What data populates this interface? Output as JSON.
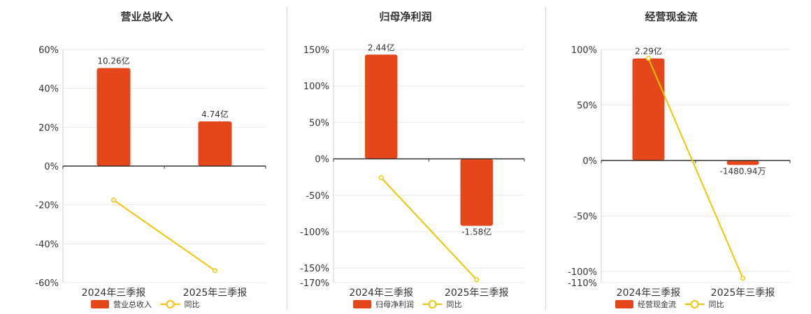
{
  "colors": {
    "bar": "#e5461a",
    "line": "#f5c400",
    "grid": "#e8e8e8",
    "axis": "#333333",
    "text": "#333333"
  },
  "chart_data": [
    {
      "type": "bar",
      "title": "营业总收入",
      "categories": [
        "2024年三季报",
        "2025年三季报"
      ],
      "series": [
        {
          "name": "营业总收入",
          "type": "bar",
          "values": [
            50.5,
            23.0
          ],
          "labels": [
            "10.26亿",
            "4.74亿"
          ]
        },
        {
          "name": "同比",
          "type": "line",
          "values": [
            -17.5,
            -53.8
          ]
        }
      ],
      "yticks": [
        "60%",
        "40%",
        "20%",
        "0%",
        "-20%",
        "-40%",
        "-60%"
      ],
      "ylim": [
        -60,
        60
      ],
      "legend": "bottom"
    },
    {
      "type": "bar",
      "title": "归母净利润",
      "categories": [
        "2024年三季报",
        "2025年三季报"
      ],
      "series": [
        {
          "name": "归母净利润",
          "type": "bar",
          "values": [
            143,
            -92
          ],
          "labels": [
            "2.44亿",
            "-1.58亿"
          ]
        },
        {
          "name": "同比",
          "type": "line",
          "values": [
            -26,
            -166
          ]
        }
      ],
      "yticks": [
        "150%",
        "100%",
        "50%",
        "0%",
        "-50%",
        "-100%",
        "-150%",
        "-170%"
      ],
      "ylim": [
        -170,
        150
      ],
      "legend": "bottom"
    },
    {
      "type": "bar",
      "title": "经营现金流",
      "categories": [
        "2024年三季报",
        "2025年三季报"
      ],
      "series": [
        {
          "name": "经营现金流",
          "type": "bar",
          "values": [
            92,
            -4
          ],
          "labels": [
            "2.29亿",
            "-1480.94万"
          ]
        },
        {
          "name": "同比",
          "type": "line",
          "values": [
            92,
            -106
          ]
        }
      ],
      "yticks": [
        "100%",
        "50%",
        "0%",
        "-50%",
        "-100%",
        "-110%"
      ],
      "ylim": [
        -110,
        100
      ],
      "legend": "bottom"
    }
  ]
}
